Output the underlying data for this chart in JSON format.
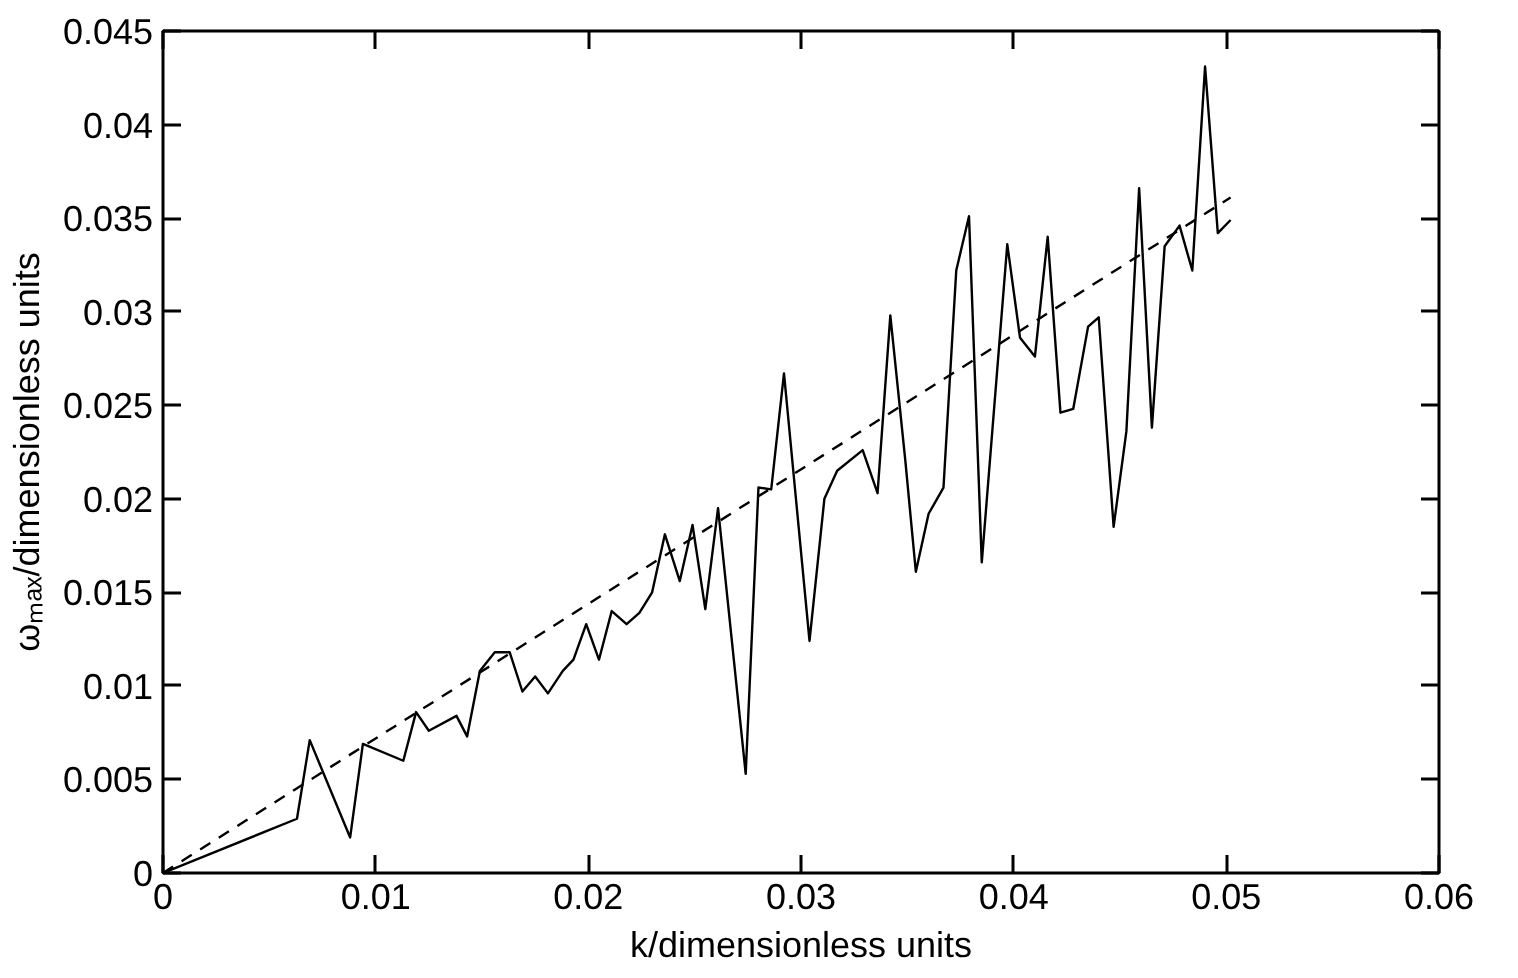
{
  "chart_data": {
    "type": "line",
    "xlabel": "k/dimensionless units",
    "ylabel": "ωₘₐₓ/dimensionless units",
    "xlim": [
      0,
      0.06
    ],
    "ylim": [
      0,
      0.045
    ],
    "xticks": [
      0,
      0.01,
      0.02,
      0.03,
      0.04,
      0.05,
      0.06
    ],
    "yticks": [
      0,
      0.005,
      0.01,
      0.015,
      0.02,
      0.025,
      0.03,
      0.035,
      0.04,
      0.045
    ],
    "series": [
      {
        "color": "#000000",
        "line_style": "solid",
        "x": [
          0,
          0.0063,
          0.0069,
          0.0088,
          0.0094,
          0.0113,
          0.0119,
          0.0125,
          0.0138,
          0.0143,
          0.0149,
          0.0156,
          0.0163,
          0.0169,
          0.0175,
          0.0181,
          0.0188,
          0.0193,
          0.0199,
          0.0205,
          0.0211,
          0.0218,
          0.0224,
          0.023,
          0.0236,
          0.0243,
          0.0249,
          0.0255,
          0.0261,
          0.0274,
          0.028,
          0.0286,
          0.0292,
          0.0304,
          0.0311,
          0.0317,
          0.0329,
          0.0336,
          0.0342,
          0.0349,
          0.0354,
          0.036,
          0.0367,
          0.0373,
          0.0379,
          0.0385,
          0.0397,
          0.0403,
          0.041,
          0.0416,
          0.0422,
          0.0428,
          0.0435,
          0.044,
          0.0447,
          0.0453,
          0.0459,
          0.0465,
          0.0471,
          0.0478,
          0.0484,
          0.049,
          0.0496,
          0.0502
        ],
        "values": [
          0,
          0.0029,
          0.0071,
          0.0019,
          0.0069,
          0.006,
          0.0086,
          0.0076,
          0.0084,
          0.0073,
          0.0108,
          0.0118,
          0.0118,
          0.0097,
          0.0105,
          0.0096,
          0.0108,
          0.0114,
          0.0133,
          0.0114,
          0.014,
          0.0133,
          0.0139,
          0.015,
          0.0181,
          0.0156,
          0.0186,
          0.0141,
          0.0195,
          0.0053,
          0.0206,
          0.0205,
          0.0267,
          0.0124,
          0.02,
          0.0215,
          0.0226,
          0.0203,
          0.0298,
          0.0221,
          0.0161,
          0.0192,
          0.0206,
          0.0322,
          0.0351,
          0.0166,
          0.0336,
          0.0286,
          0.0276,
          0.034,
          0.0246,
          0.0248,
          0.0292,
          0.0297,
          0.0185,
          0.0236,
          0.0366,
          0.0238,
          0.0335,
          0.0346,
          0.0322,
          0.0431,
          0.0342,
          0.0349
        ]
      },
      {
        "color": "#000000",
        "line_style": "dashed",
        "x": [
          0,
          0.0502
        ],
        "values": [
          0,
          0.0361
        ]
      }
    ]
  }
}
